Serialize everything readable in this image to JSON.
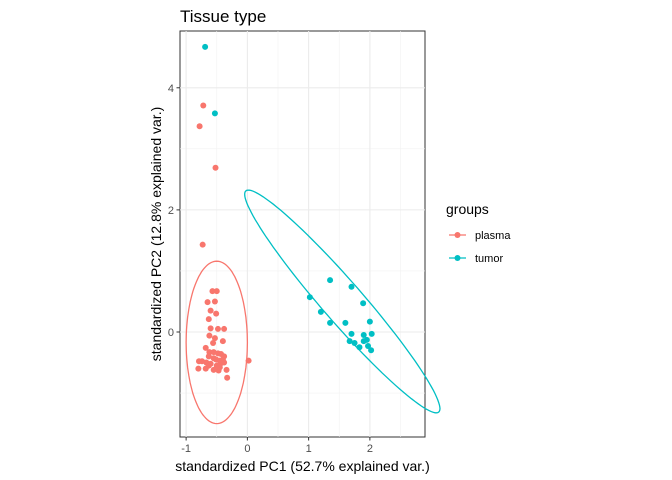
{
  "chart_data": {
    "type": "scatter",
    "title": "Tissue type",
    "xlabel": "standardized PC1 (52.7% explained var.)",
    "ylabel": "standardized PC2 (12.8% explained var.)",
    "xlim": [
      -1.1,
      2.9
    ],
    "ylim": [
      -1.72,
      4.93
    ],
    "x_ticks": [
      -1,
      0,
      1,
      2
    ],
    "x_tick_labels": [
      "-1",
      "0",
      "1",
      "2"
    ],
    "y_ticks": [
      0,
      2,
      4
    ],
    "y_tick_labels": [
      "0",
      "2",
      "4"
    ],
    "grid": true,
    "legend": {
      "title": "groups",
      "position": "right",
      "entries": [
        "plasma",
        "tumor"
      ]
    },
    "series": [
      {
        "name": "plasma",
        "color": "#F8766D",
        "points": [
          [
            -0.72,
            3.71
          ],
          [
            -0.78,
            3.37
          ],
          [
            -0.52,
            2.69
          ],
          [
            -0.73,
            1.43
          ],
          [
            -0.57,
            0.67
          ],
          [
            -0.5,
            0.67
          ],
          [
            -0.65,
            0.49
          ],
          [
            -0.53,
            0.5
          ],
          [
            -0.6,
            0.35
          ],
          [
            -0.51,
            0.3
          ],
          [
            -0.63,
            0.21
          ],
          [
            -0.6,
            0.06
          ],
          [
            -0.48,
            0.05
          ],
          [
            -0.38,
            0.05
          ],
          [
            -0.62,
            -0.06
          ],
          [
            -0.53,
            -0.1
          ],
          [
            -0.4,
            -0.15
          ],
          [
            -0.56,
            -0.18
          ],
          [
            -0.68,
            -0.26
          ],
          [
            -0.62,
            -0.33
          ],
          [
            -0.55,
            -0.33
          ],
          [
            -0.48,
            -0.35
          ],
          [
            -0.43,
            -0.36
          ],
          [
            -0.38,
            -0.4
          ],
          [
            -0.63,
            -0.4
          ],
          [
            -0.55,
            -0.43
          ],
          [
            -0.51,
            -0.45
          ],
          [
            -0.45,
            -0.47
          ],
          [
            -0.4,
            -0.45
          ],
          [
            -0.74,
            -0.48
          ],
          [
            -0.79,
            -0.48
          ],
          [
            -0.67,
            -0.5
          ],
          [
            -0.6,
            -0.52
          ],
          [
            -0.5,
            -0.55
          ],
          [
            -0.44,
            -0.52
          ],
          [
            -0.38,
            -0.5
          ],
          [
            -0.8,
            -0.6
          ],
          [
            -0.68,
            -0.6
          ],
          [
            -0.55,
            -0.62
          ],
          [
            -0.47,
            -0.63
          ],
          [
            -0.34,
            -0.62
          ],
          [
            -0.45,
            -0.58
          ],
          [
            -0.63,
            -0.55
          ],
          [
            -0.33,
            -0.75
          ],
          [
            0.02,
            -0.47
          ]
        ],
        "ellipse": {
          "cx": -0.5,
          "cy": -0.17,
          "rx": 0.5,
          "ry": 1.33,
          "angle_deg": 0
        }
      },
      {
        "name": "tumor",
        "color": "#00BFC4",
        "points": [
          [
            -0.69,
            4.67
          ],
          [
            -0.53,
            3.58
          ],
          [
            1.7,
            0.74
          ],
          [
            1.35,
            0.85
          ],
          [
            1.02,
            0.57
          ],
          [
            1.2,
            0.33
          ],
          [
            1.89,
            0.47
          ],
          [
            1.35,
            0.15
          ],
          [
            1.6,
            0.15
          ],
          [
            1.7,
            -0.03
          ],
          [
            2.0,
            0.17
          ],
          [
            1.9,
            -0.05
          ],
          [
            2.03,
            -0.03
          ],
          [
            1.67,
            -0.15
          ],
          [
            1.95,
            -0.13
          ],
          [
            1.75,
            -0.18
          ],
          [
            1.83,
            -0.25
          ],
          [
            1.97,
            -0.23
          ],
          [
            1.9,
            -0.15
          ],
          [
            2.02,
            -0.3
          ]
        ],
        "ellipse": {
          "cx": 1.55,
          "cy": 0.5,
          "rx": 2.4,
          "ry": 0.33,
          "angle_deg": -49
        }
      }
    ]
  }
}
